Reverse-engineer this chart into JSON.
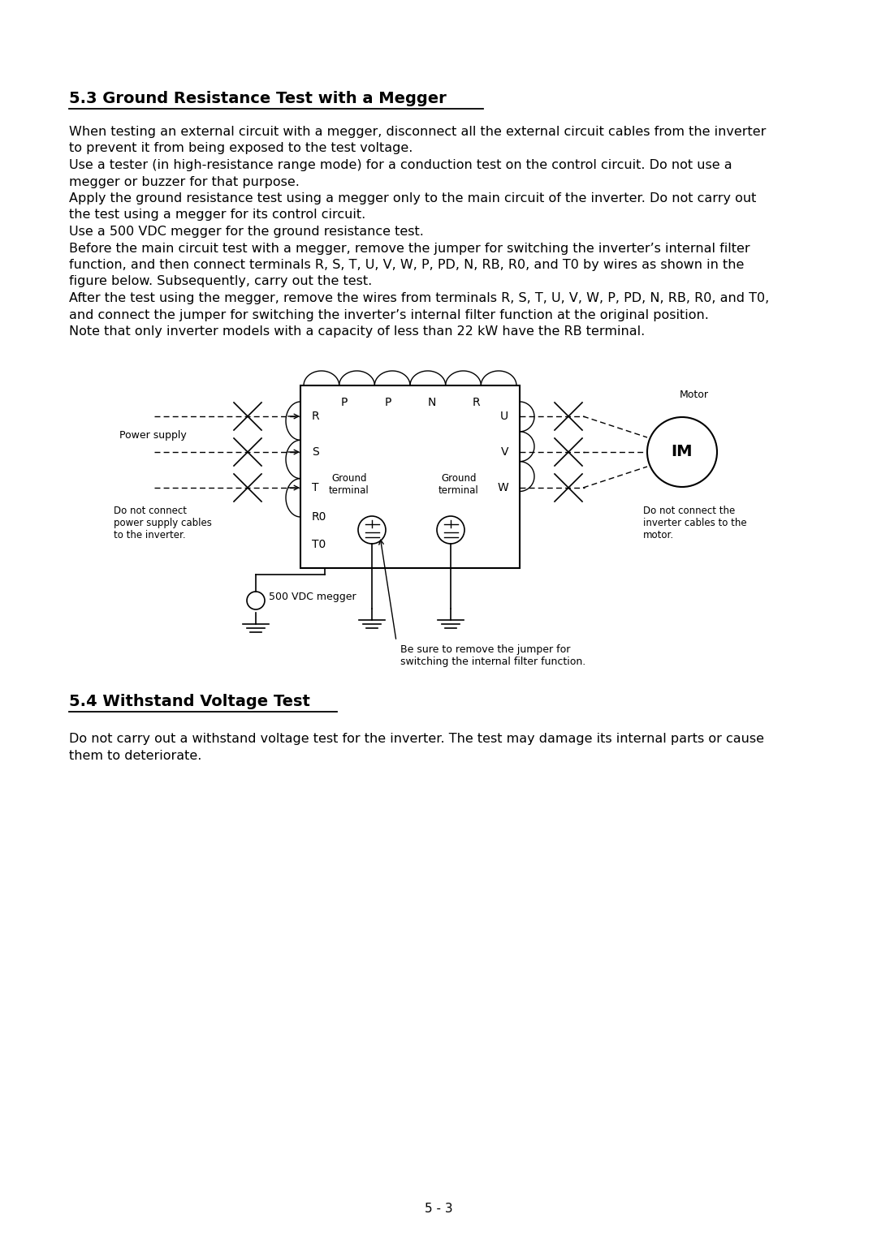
{
  "title": "5.3 Ground Resistance Test with a Megger",
  "section2_title": "5.4 Withstand Voltage Test",
  "body_text": [
    "When testing an external circuit with a megger, disconnect all the external circuit cables from the inverter",
    "to prevent it from being exposed to the test voltage.",
    "Use a tester (in high-resistance range mode) for a conduction test on the control circuit. Do not use a",
    "megger or buzzer for that purpose.",
    "Apply the ground resistance test using a megger only to the main circuit of the inverter. Do not carry out",
    "the test using a megger for its control circuit.",
    "Use a 500 VDC megger for the ground resistance test.",
    "Before the main circuit test with a megger, remove the jumper for switching the inverter’s internal filter",
    "function, and then connect terminals R, S, T, U, V, W, P, PD, N, RB, R0, and T0 by wires as shown in the",
    "figure below. Subsequently, carry out the test.",
    "After the test using the megger, remove the wires from terminals R, S, T, U, V, W, P, PD, N, RB, R0, and T0,",
    "and connect the jumper for switching the inverter’s internal filter function at the original position.",
    "Note that only inverter models with a capacity of less than 22 kW have the RB terminal."
  ],
  "section2_text": [
    "Do not carry out a withstand voltage test for the inverter. The test may damage its internal parts or cause",
    "them to deteriorate."
  ],
  "page_number": "5 - 3",
  "bg_color": "#ffffff",
  "text_color": "#000000"
}
